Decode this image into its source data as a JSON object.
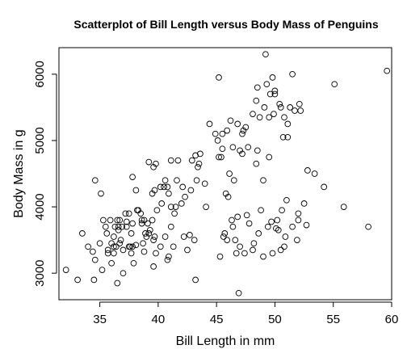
{
  "chart_data": {
    "type": "scatter",
    "title": "Scatterplot of Bill Length versus Body Mass of Penguins",
    "xlabel": "Bill Length in mm",
    "ylabel": "Body Mass in g",
    "xlim": [
      31.5,
      60
    ],
    "ylim": [
      2600,
      6400
    ],
    "x_ticks": [
      35,
      40,
      45,
      50,
      55,
      60
    ],
    "y_ticks": [
      3000,
      4000,
      5000,
      6000
    ],
    "x_tick_labels": [
      "35",
      "40",
      "45",
      "50",
      "55",
      "60"
    ],
    "y_tick_labels": [
      "3000",
      "4000",
      "5000",
      "6000"
    ],
    "grid": false,
    "legend": "none",
    "marker": "open-circle",
    "color": "#000000",
    "points": [
      [
        32.1,
        3050
      ],
      [
        33.1,
        2900
      ],
      [
        33.5,
        3600
      ],
      [
        34.0,
        3400
      ],
      [
        34.4,
        3325
      ],
      [
        34.5,
        2900
      ],
      [
        34.6,
        4400
      ],
      [
        34.6,
        3200
      ],
      [
        35.0,
        3450
      ],
      [
        35.1,
        4200
      ],
      [
        35.2,
        3050
      ],
      [
        35.3,
        3800
      ],
      [
        35.5,
        3700
      ],
      [
        35.6,
        3600
      ],
      [
        35.7,
        3350
      ],
      [
        35.7,
        3300
      ],
      [
        35.9,
        3800
      ],
      [
        36.0,
        3450
      ],
      [
        36.0,
        3150
      ],
      [
        36.2,
        3550
      ],
      [
        36.2,
        3400
      ],
      [
        36.2,
        3300
      ],
      [
        36.3,
        3700
      ],
      [
        36.4,
        3400
      ],
      [
        36.5,
        3800
      ],
      [
        36.5,
        2850
      ],
      [
        36.6,
        3700
      ],
      [
        36.6,
        3650
      ],
      [
        36.7,
        3800
      ],
      [
        36.7,
        3450
      ],
      [
        36.8,
        3500
      ],
      [
        36.9,
        3700
      ],
      [
        37.0,
        3350
      ],
      [
        37.0,
        3000
      ],
      [
        37.2,
        3900
      ],
      [
        37.3,
        3775
      ],
      [
        37.3,
        3700
      ],
      [
        37.5,
        3900
      ],
      [
        37.5,
        3400
      ],
      [
        37.6,
        3400
      ],
      [
        37.7,
        3600
      ],
      [
        37.7,
        3300
      ],
      [
        37.8,
        4450
      ],
      [
        37.8,
        3750
      ],
      [
        37.8,
        3400
      ],
      [
        37.9,
        3150
      ],
      [
        38.1,
        4250
      ],
      [
        38.1,
        3425
      ],
      [
        38.2,
        3950
      ],
      [
        38.3,
        3950
      ],
      [
        38.5,
        3900
      ],
      [
        38.6,
        3800
      ],
      [
        38.6,
        3750
      ],
      [
        38.7,
        3450
      ],
      [
        38.8,
        3800
      ],
      [
        38.8,
        3325
      ],
      [
        38.9,
        3600
      ],
      [
        39.0,
        3550
      ],
      [
        39.1,
        3750
      ],
      [
        39.2,
        4675
      ],
      [
        39.2,
        3600
      ],
      [
        39.3,
        3650
      ],
      [
        39.5,
        4200
      ],
      [
        39.5,
        3800
      ],
      [
        39.6,
        4600
      ],
      [
        39.6,
        3500
      ],
      [
        39.7,
        4250
      ],
      [
        39.7,
        3550
      ],
      [
        39.8,
        4650
      ],
      [
        39.8,
        3300
      ],
      [
        39.6,
        3100
      ],
      [
        39.9,
        3950
      ],
      [
        40.2,
        4300
      ],
      [
        40.2,
        3400
      ],
      [
        40.3,
        4050
      ],
      [
        40.5,
        4300
      ],
      [
        40.6,
        4400
      ],
      [
        40.6,
        3550
      ],
      [
        40.8,
        4300
      ],
      [
        40.8,
        3200
      ],
      [
        40.9,
        4200
      ],
      [
        40.9,
        3250
      ],
      [
        41.1,
        4700
      ],
      [
        41.1,
        4000
      ],
      [
        41.1,
        3700
      ],
      [
        41.3,
        3400
      ],
      [
        41.4,
        3900
      ],
      [
        41.5,
        4000
      ],
      [
        41.6,
        4400
      ],
      [
        41.7,
        4700
      ],
      [
        42.0,
        4050
      ],
      [
        42.1,
        4300
      ],
      [
        42.2,
        3550
      ],
      [
        42.3,
        4150
      ],
      [
        42.5,
        3350
      ],
      [
        42.7,
        3575
      ],
      [
        42.8,
        4250
      ],
      [
        42.9,
        4700
      ],
      [
        43.1,
        3500
      ],
      [
        43.2,
        4775
      ],
      [
        43.2,
        2900
      ],
      [
        43.3,
        4400
      ],
      [
        43.4,
        4600
      ],
      [
        43.5,
        4650
      ],
      [
        43.6,
        4800
      ],
      [
        44.0,
        4350
      ],
      [
        44.1,
        4000
      ],
      [
        44.4,
        5250
      ],
      [
        44.9,
        5100
      ],
      [
        45.1,
        5000
      ],
      [
        45.2,
        5950
      ],
      [
        45.2,
        4750
      ],
      [
        45.3,
        3250
      ],
      [
        45.4,
        4750
      ],
      [
        45.5,
        5100
      ],
      [
        45.6,
        3550
      ],
      [
        45.7,
        3600
      ],
      [
        45.8,
        4200
      ],
      [
        46.0,
        4150
      ],
      [
        46.1,
        4500
      ],
      [
        46.2,
        5300
      ],
      [
        46.4,
        3700
      ],
      [
        46.5,
        4400
      ],
      [
        46.7,
        3300
      ],
      [
        46.8,
        3850
      ],
      [
        46.9,
        2700
      ],
      [
        47.0,
        4850
      ],
      [
        47.2,
        5100
      ],
      [
        47.4,
        3300
      ],
      [
        47.5,
        5200
      ],
      [
        47.7,
        4900
      ],
      [
        47.8,
        3750
      ],
      [
        48.1,
        5400
      ],
      [
        48.2,
        3450
      ],
      [
        48.4,
        5600
      ],
      [
        48.5,
        5800
      ],
      [
        48.7,
        5350
      ],
      [
        48.8,
        3950
      ],
      [
        49.0,
        4400
      ],
      [
        49.1,
        5500
      ],
      [
        49.2,
        6300
      ],
      [
        49.3,
        5850
      ],
      [
        49.5,
        4750
      ],
      [
        49.6,
        5700
      ],
      [
        49.8,
        5950
      ],
      [
        50.0,
        5750
      ],
      [
        50.2,
        3800
      ],
      [
        50.4,
        5550
      ],
      [
        50.5,
        3350
      ],
      [
        50.6,
        3950
      ],
      [
        50.8,
        5350
      ],
      [
        51.0,
        4100
      ],
      [
        51.1,
        5250
      ],
      [
        51.3,
        5500
      ],
      [
        51.5,
        6000
      ],
      [
        51.7,
        5450
      ],
      [
        52.0,
        3900
      ],
      [
        52.2,
        5450
      ],
      [
        52.5,
        4050
      ],
      [
        52.7,
        3725
      ],
      [
        52.8,
        4550
      ],
      [
        53.4,
        4500
      ],
      [
        54.2,
        4300
      ],
      [
        55.1,
        5850
      ],
      [
        55.9,
        4000
      ],
      [
        58.0,
        3700
      ],
      [
        59.6,
        6050
      ],
      [
        48.6,
        3600
      ],
      [
        49.4,
        3700
      ],
      [
        50.9,
        3550
      ],
      [
        51.5,
        3700
      ],
      [
        46.3,
        3800
      ],
      [
        47.6,
        3875
      ],
      [
        49.7,
        3775
      ],
      [
        50.3,
        3650
      ],
      [
        50.8,
        3400
      ],
      [
        51.9,
        3500
      ],
      [
        52.0,
        3800
      ],
      [
        45.9,
        3500
      ],
      [
        46.6,
        3500
      ],
      [
        47.0,
        3400
      ],
      [
        48.1,
        3350
      ],
      [
        49.0,
        3250
      ],
      [
        49.8,
        3300
      ],
      [
        50.1,
        3675
      ],
      [
        45.9,
        5150
      ],
      [
        46.8,
        5250
      ],
      [
        47.3,
        5150
      ],
      [
        48.4,
        4650
      ],
      [
        49.9,
        5400
      ],
      [
        50.7,
        5050
      ],
      [
        45.5,
        4875
      ],
      [
        46.4,
        4900
      ],
      [
        47.2,
        4800
      ],
      [
        48.5,
        4850
      ],
      [
        49.5,
        5350
      ],
      [
        50.0,
        5700
      ],
      [
        50.5,
        5500
      ],
      [
        51.1,
        5050
      ],
      [
        52.1,
        5550
      ]
    ]
  }
}
